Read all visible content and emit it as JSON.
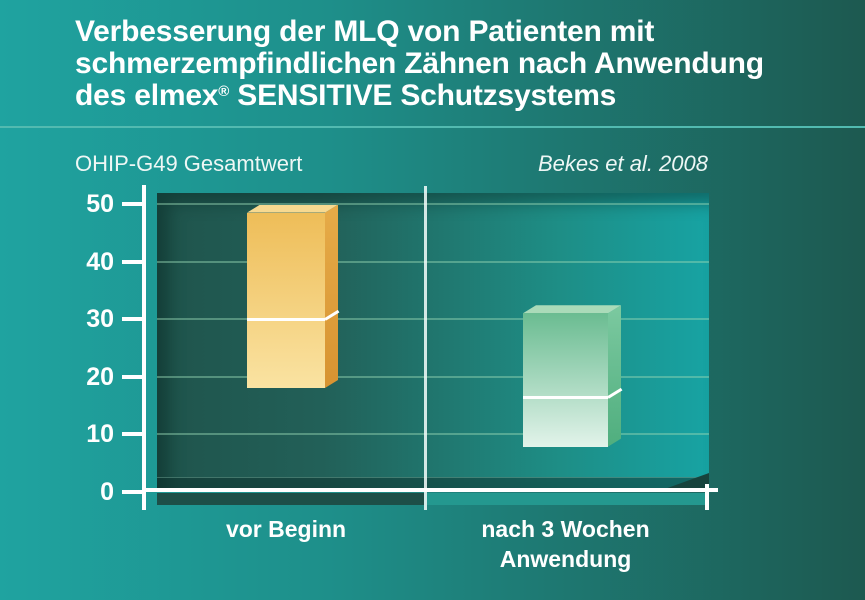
{
  "title": {
    "line1": "Verbesserung der MLQ von Patienten mit",
    "line2": "schmerzempfindlichen Zähnen nach Anwendung",
    "line3_pre": "des elmex",
    "line3_sup": "®",
    "line3_post": " SENSITIVE Schutzsystems"
  },
  "chart_data": {
    "type": "bar",
    "variant": "3d floating range bars with mean line",
    "title": "Verbesserung der MLQ von Patienten mit schmerzempfindlichen Zähnen nach Anwendung des elmex® SENSITIVE Schutzsystems",
    "ylabel": "OHIP-G49 Gesamtwert",
    "source": "Bekes et al. 2008",
    "ylim": [
      0,
      50
    ],
    "yticks": [
      0,
      10,
      20,
      30,
      40,
      50
    ],
    "grid": true,
    "legend": "none",
    "categories": [
      "vor Beginn",
      "nach 3 Wochen\nAnwendung"
    ],
    "bars": [
      {
        "label": "vor Beginn",
        "range_top": 48.5,
        "mean_line": 30,
        "range_bottom": 18,
        "color_top_face": "#f7d990",
        "color_front_top": "#eebd58",
        "color_front_bottom": "#fae3a2",
        "color_side_top": "#e6ab48",
        "color_side_bottom": "#d79331"
      },
      {
        "label": "nach 3 Wochen\nAnwendung",
        "range_top": 31,
        "mean_line": 16.3,
        "range_bottom": 7.8,
        "color_top_face": "#aadbb9",
        "color_front_top": "#6abc91",
        "color_front_bottom": "#e2f3ea",
        "color_side_top": "#7cc9a0",
        "color_side_bottom": "#4fae7e"
      }
    ],
    "colors": {
      "background_left": "#1fa3a0",
      "background_right": "#1d5950",
      "plot_left": "#1f544c",
      "plot_right": "#17a3a3",
      "axis": "#ffffff",
      "gridline": "#96d7b4",
      "separator_line": "#52bab0",
      "text": "#ffffff"
    }
  }
}
